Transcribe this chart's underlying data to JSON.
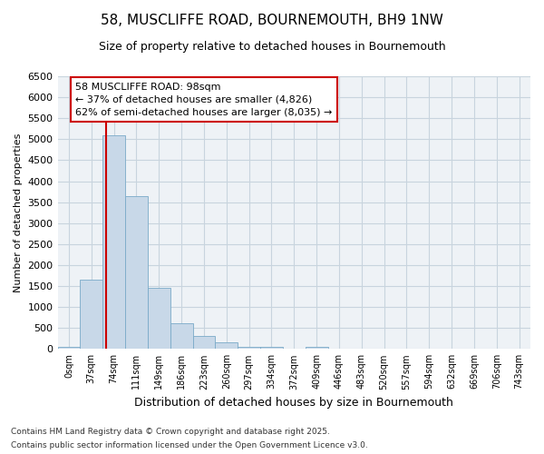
{
  "title1": "58, MUSCLIFFE ROAD, BOURNEMOUTH, BH9 1NW",
  "title2": "Size of property relative to detached houses in Bournemouth",
  "xlabel": "Distribution of detached houses by size in Bournemouth",
  "ylabel": "Number of detached properties",
  "bin_labels": [
    "0sqm",
    "37sqm",
    "74sqm",
    "111sqm",
    "149sqm",
    "186sqm",
    "223sqm",
    "260sqm",
    "297sqm",
    "334sqm",
    "372sqm",
    "409sqm",
    "446sqm",
    "483sqm",
    "520sqm",
    "557sqm",
    "594sqm",
    "632sqm",
    "669sqm",
    "706sqm",
    "743sqm"
  ],
  "bar_values": [
    60,
    1650,
    5100,
    3650,
    1450,
    620,
    320,
    150,
    50,
    50,
    0,
    50,
    0,
    0,
    0,
    0,
    0,
    0,
    0,
    0,
    0
  ],
  "bar_color": "#c8d8e8",
  "bar_edge_color": "#7aaac8",
  "grid_color": "#c8d4de",
  "background_color": "#eef2f6",
  "red_line_x": 2.5,
  "annotation_text": "58 MUSCLIFFE ROAD: 98sqm\n← 37% of detached houses are smaller (4,826)\n62% of semi-detached houses are larger (8,035) →",
  "annotation_box_facecolor": "#ffffff",
  "annotation_box_edgecolor": "#cc0000",
  "red_line_color": "#cc0000",
  "footer1": "Contains HM Land Registry data © Crown copyright and database right 2025.",
  "footer2": "Contains public sector information licensed under the Open Government Licence v3.0.",
  "ylim": [
    0,
    6500
  ],
  "yticks": [
    0,
    500,
    1000,
    1500,
    2000,
    2500,
    3000,
    3500,
    4000,
    4500,
    5000,
    5500,
    6000,
    6500
  ],
  "title1_fontsize": 11,
  "title2_fontsize": 9,
  "ylabel_fontsize": 8,
  "xlabel_fontsize": 9,
  "ytick_fontsize": 8,
  "xtick_fontsize": 7
}
